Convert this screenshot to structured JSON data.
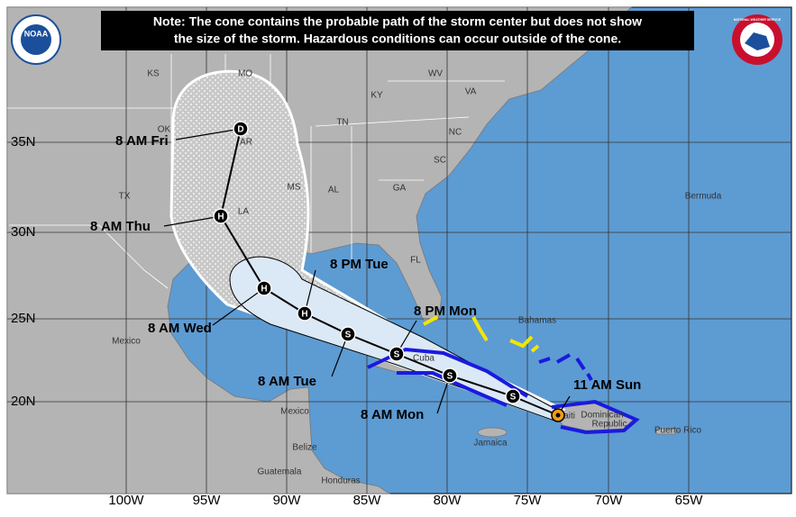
{
  "note": [
    "Note: The cone contains the probable path of the storm center but does not show",
    "the size of the storm. Hazardous conditions can occur outside of the cone."
  ],
  "latitude_labels": [
    "35N",
    "30N",
    "25N",
    "20N"
  ],
  "longitude_labels": [
    "100W",
    "95W",
    "90W",
    "85W",
    "80W",
    "75W",
    "70W",
    "65W"
  ],
  "state_labels": [
    "KS",
    "MO",
    "KY",
    "WV",
    "VA",
    "TN",
    "NC",
    "SC",
    "OK",
    "AR",
    "TX",
    "MS",
    "AL",
    "GA",
    "LA",
    "FL"
  ],
  "place_labels": [
    "Bermuda",
    "Bahamas",
    "Cuba",
    "Mexico",
    "Mexico",
    "Belize",
    "Guatemala",
    "Honduras",
    "Jamaica",
    "Haiti",
    "Dominican",
    "Republic",
    "Puerto Rico"
  ],
  "track": [
    {
      "label": "11 AM Sun"
    },
    {
      "symbol": "S"
    },
    {
      "label": "8 AM Mon",
      "symbol": "S"
    },
    {
      "label": "8 PM Mon",
      "symbol": "S"
    },
    {
      "label": "8 AM Tue",
      "symbol": "S"
    },
    {
      "label": "8 PM Tue",
      "symbol": "H"
    },
    {
      "label": "8 AM Wed",
      "symbol": "H"
    },
    {
      "label": "8 AM Thu",
      "symbol": "H"
    },
    {
      "label": "8 AM Fri",
      "symbol": "D"
    }
  ],
  "logos": [
    "NOAA",
    "NATIONAL WEATHER SERVICE"
  ]
}
